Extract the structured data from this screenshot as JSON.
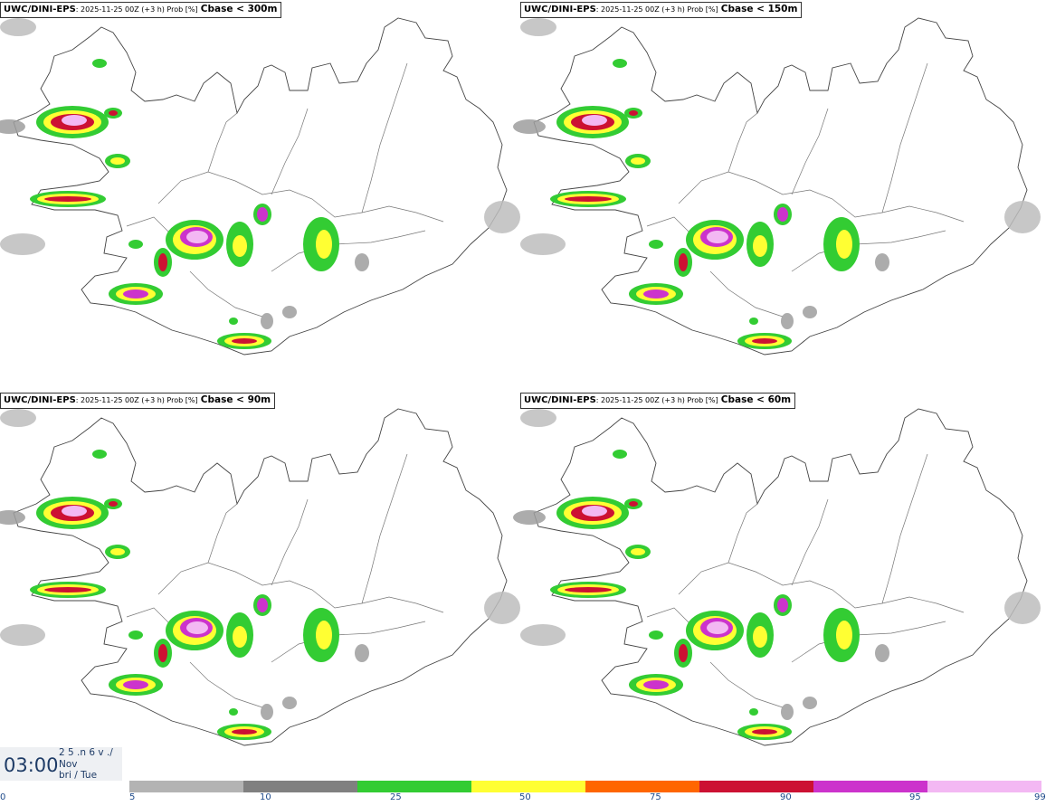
{
  "panels": [
    {
      "model": "UWC/DINI-EPS",
      "meta": ": 2025-11-25 00Z (+3 h) Prob [%]",
      "variable": "Cbase < 300m"
    },
    {
      "model": "UWC/DINI-EPS",
      "meta": ": 2025-11-25 00Z (+3 h) Prob [%]",
      "variable": "Cbase < 150m"
    },
    {
      "model": "UWC/DINI-EPS",
      "meta": ": 2025-11-25 00Z (+3 h) Prob [%]",
      "variable": "Cbase < 90m"
    },
    {
      "model": "UWC/DINI-EPS",
      "meta": ": 2025-11-25 00Z (+3 h) Prob [%]",
      "variable": "Cbase < 60m"
    }
  ],
  "time": {
    "clock": "03:00",
    "line1": "2 5 .n 6 v ./",
    "line2": "Nov",
    "line3": "bri / Tue"
  },
  "legend": {
    "colors": [
      "#b3b3b3",
      "#808080",
      "#33cc33",
      "#ffff33",
      "#ff6600",
      "#cc1133",
      "#cc33cc",
      "#f3b8f3"
    ],
    "ticks": [
      "0",
      "5",
      "10",
      "25",
      "50",
      "75",
      "90",
      "95",
      "99"
    ]
  }
}
